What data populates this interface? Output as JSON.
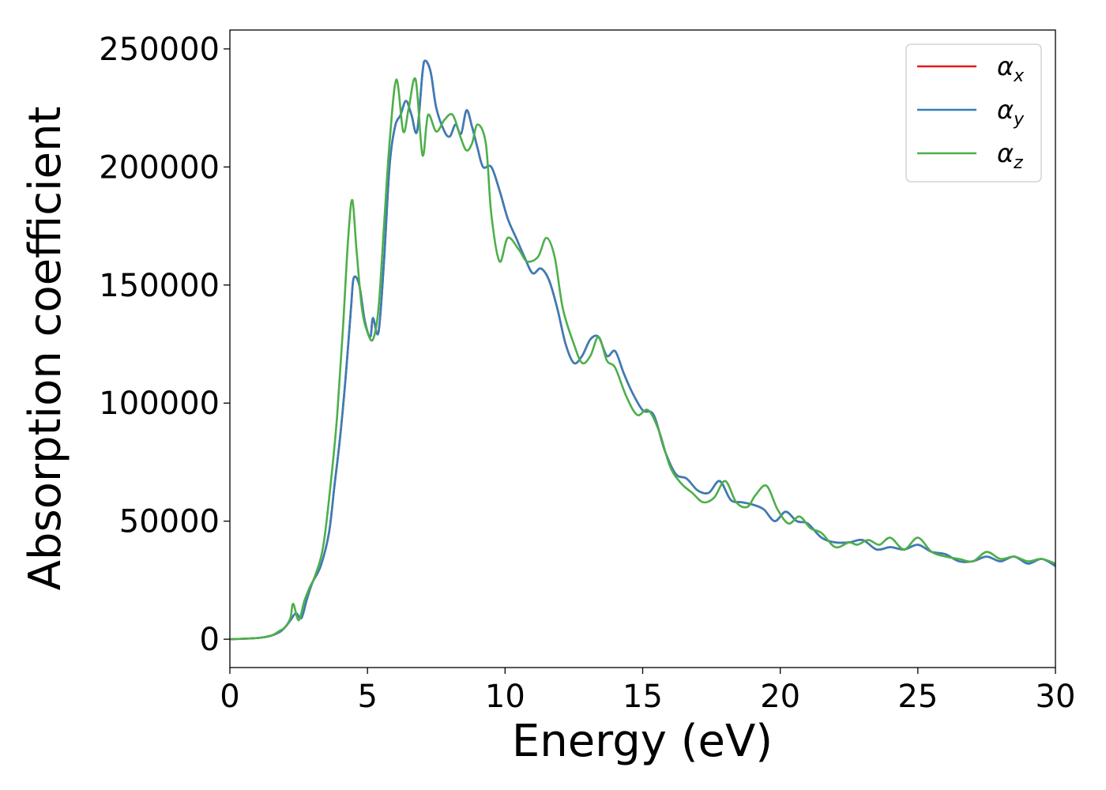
{
  "chart_data": {
    "type": "line",
    "xlabel": "Energy (eV)",
    "ylabel": "Absorption coefficient",
    "xlim": [
      0,
      30
    ],
    "ylim": [
      -12000,
      258000
    ],
    "xticks": [
      0,
      5,
      10,
      15,
      20,
      25,
      30
    ],
    "xtick_labels": [
      "0",
      "5",
      "10",
      "15",
      "20",
      "25",
      "30"
    ],
    "yticks": [
      0,
      50000,
      100000,
      150000,
      200000,
      250000
    ],
    "ytick_labels": [
      "0",
      "50000",
      "100000",
      "150000",
      "200000",
      "250000"
    ],
    "grid": false,
    "legend_position": "top-right",
    "series": [
      {
        "name": "α_x",
        "legend_symbol": "α",
        "legend_subscript": "x",
        "color": "#e41a1c",
        "x": [
          0,
          1,
          1.5,
          1.8,
          2.0,
          2.2,
          2.4,
          2.6,
          2.8,
          3.0,
          3.3,
          3.6,
          3.8,
          4.0,
          4.2,
          4.4,
          4.5,
          4.7,
          4.9,
          5.1,
          5.2,
          5.4,
          5.6,
          5.8,
          6.0,
          6.2,
          6.4,
          6.6,
          6.8,
          7.0,
          7.1,
          7.3,
          7.5,
          7.8,
          8.0,
          8.2,
          8.4,
          8.6,
          8.8,
          9.0,
          9.2,
          9.5,
          9.8,
          10.1,
          10.4,
          10.7,
          11.0,
          11.3,
          11.6,
          11.9,
          12.2,
          12.5,
          12.8,
          13.1,
          13.4,
          13.7,
          14.0,
          14.3,
          14.6,
          15.0,
          15.4,
          15.8,
          16.2,
          16.6,
          17.0,
          17.4,
          17.8,
          18.2,
          18.6,
          19.0,
          19.4,
          19.8,
          20.2,
          20.6,
          21.0,
          21.5,
          22.0,
          22.5,
          23.0,
          23.5,
          24.0,
          24.5,
          25.0,
          25.5,
          26.0,
          26.5,
          27.0,
          27.5,
          28.0,
          28.5,
          29.0,
          29.5,
          30.0
        ],
        "values": [
          0,
          500,
          1500,
          3000,
          5000,
          8000,
          11000,
          9000,
          17000,
          24000,
          31000,
          45000,
          65000,
          85000,
          110000,
          140000,
          153000,
          150000,
          135000,
          128000,
          136000,
          130000,
          160000,
          200000,
          217000,
          222000,
          228000,
          222000,
          215000,
          240000,
          245000,
          240000,
          225000,
          215000,
          213000,
          218000,
          214000,
          224000,
          217000,
          208000,
          200000,
          200000,
          190000,
          178000,
          170000,
          162000,
          155000,
          157000,
          152000,
          140000,
          125000,
          117000,
          120000,
          127000,
          128000,
          120000,
          122000,
          113000,
          105000,
          97000,
          95000,
          80000,
          70000,
          68000,
          63000,
          62000,
          67000,
          59000,
          58000,
          57000,
          55000,
          50000,
          54000,
          50000,
          49000,
          43000,
          41000,
          41000,
          42000,
          38000,
          39000,
          38000,
          40000,
          37000,
          36000,
          33000,
          33000,
          35000,
          33000,
          35000,
          32000,
          34000,
          31000
        ]
      },
      {
        "name": "α_y",
        "legend_symbol": "α",
        "legend_subscript": "y",
        "color": "#377eb8",
        "x": [
          0,
          1,
          1.5,
          1.8,
          2.0,
          2.2,
          2.4,
          2.6,
          2.8,
          3.0,
          3.3,
          3.6,
          3.8,
          4.0,
          4.2,
          4.4,
          4.5,
          4.7,
          4.9,
          5.1,
          5.2,
          5.4,
          5.6,
          5.8,
          6.0,
          6.2,
          6.4,
          6.6,
          6.8,
          7.0,
          7.1,
          7.3,
          7.5,
          7.8,
          8.0,
          8.2,
          8.4,
          8.6,
          8.8,
          9.0,
          9.2,
          9.5,
          9.8,
          10.1,
          10.4,
          10.7,
          11.0,
          11.3,
          11.6,
          11.9,
          12.2,
          12.5,
          12.8,
          13.1,
          13.4,
          13.7,
          14.0,
          14.3,
          14.6,
          15.0,
          15.4,
          15.8,
          16.2,
          16.6,
          17.0,
          17.4,
          17.8,
          18.2,
          18.6,
          19.0,
          19.4,
          19.8,
          20.2,
          20.6,
          21.0,
          21.5,
          22.0,
          22.5,
          23.0,
          23.5,
          24.0,
          24.5,
          25.0,
          25.5,
          26.0,
          26.5,
          27.0,
          27.5,
          28.0,
          28.5,
          29.0,
          29.5,
          30.0
        ],
        "values": [
          0,
          500,
          1500,
          3000,
          5000,
          8000,
          11000,
          9000,
          17000,
          24000,
          31000,
          45000,
          65000,
          85000,
          110000,
          140000,
          153000,
          150000,
          135000,
          128000,
          136000,
          130000,
          160000,
          200000,
          217000,
          222000,
          228000,
          222000,
          215000,
          240000,
          245000,
          240000,
          225000,
          215000,
          213000,
          218000,
          214000,
          224000,
          217000,
          208000,
          200000,
          200000,
          190000,
          178000,
          170000,
          162000,
          155000,
          157000,
          152000,
          140000,
          125000,
          117000,
          120000,
          127000,
          128000,
          120000,
          122000,
          113000,
          105000,
          97000,
          95000,
          80000,
          70000,
          68000,
          63000,
          62000,
          67000,
          59000,
          58000,
          57000,
          55000,
          50000,
          54000,
          50000,
          49000,
          43000,
          41000,
          41000,
          42000,
          38000,
          39000,
          38000,
          40000,
          37000,
          36000,
          33000,
          33000,
          35000,
          33000,
          35000,
          32000,
          34000,
          31000
        ]
      },
      {
        "name": "α_z",
        "legend_symbol": "α",
        "legend_subscript": "z",
        "color": "#4daf4a",
        "x": [
          0,
          1,
          1.5,
          1.8,
          2.0,
          2.2,
          2.3,
          2.5,
          2.7,
          2.9,
          3.1,
          3.4,
          3.7,
          3.9,
          4.1,
          4.3,
          4.45,
          4.6,
          4.8,
          5.0,
          5.2,
          5.4,
          5.6,
          5.8,
          6.05,
          6.3,
          6.5,
          6.75,
          7.0,
          7.2,
          7.5,
          7.8,
          8.1,
          8.4,
          8.6,
          8.8,
          9.0,
          9.3,
          9.5,
          9.8,
          10.1,
          10.5,
          10.8,
          11.2,
          11.5,
          11.8,
          12.1,
          12.5,
          12.8,
          13.1,
          13.4,
          13.7,
          14.0,
          14.4,
          14.8,
          15.2,
          15.6,
          16.0,
          16.4,
          16.8,
          17.2,
          17.6,
          18.0,
          18.4,
          18.8,
          19.1,
          19.5,
          19.9,
          20.3,
          20.7,
          21.1,
          21.5,
          22.0,
          22.5,
          22.8,
          23.2,
          23.6,
          24.0,
          24.5,
          25.0,
          25.5,
          26.0,
          26.5,
          27.0,
          27.5,
          28.0,
          28.5,
          29.0,
          29.5,
          30.0
        ],
        "values": [
          0,
          500,
          1500,
          3500,
          5000,
          9000,
          15000,
          8000,
          16000,
          22000,
          27000,
          40000,
          70000,
          95000,
          130000,
          170000,
          186000,
          165000,
          140000,
          130000,
          127000,
          140000,
          175000,
          210000,
          237000,
          215000,
          225000,
          237000,
          205000,
          222000,
          215000,
          220000,
          222000,
          212000,
          207000,
          210000,
          218000,
          210000,
          180000,
          160000,
          170000,
          165000,
          160000,
          162000,
          170000,
          162000,
          140000,
          125000,
          117000,
          120000,
          128000,
          118000,
          115000,
          103000,
          95000,
          97000,
          88000,
          73000,
          66000,
          62000,
          58000,
          60000,
          67000,
          58000,
          56000,
          61000,
          65000,
          55000,
          49000,
          52000,
          47000,
          45000,
          39000,
          41000,
          40000,
          42000,
          40000,
          43000,
          38000,
          43000,
          37000,
          35000,
          34000,
          33000,
          37000,
          34000,
          35000,
          33000,
          34000,
          32000
        ]
      }
    ]
  }
}
